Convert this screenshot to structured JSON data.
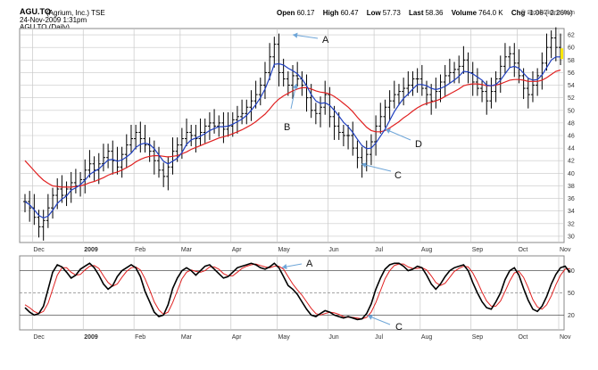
{
  "header": {
    "symbol": "AGU.TO",
    "company": "(Agrium, Inc.)",
    "exchange": "TSE",
    "datetime": "24-Nov-2009 1:31pm",
    "chart_name": "AGU.TO (Daily)",
    "copyright": "© StockCharts.com",
    "quote": {
      "open_label": "Open",
      "open": "60.17",
      "high_label": "High",
      "high": "60.47",
      "low_label": "Low",
      "low": "57.73",
      "last_label": "Last",
      "last": "58.36",
      "volume_label": "Volume",
      "volume": "764.0 K",
      "chg_label": "Chg",
      "chg": "-1.06 (-2.26%)"
    }
  },
  "annotations": {
    "price": [
      "A",
      "B",
      "C",
      "D"
    ],
    "oscillator": [
      "A",
      "C"
    ]
  },
  "colors": {
    "price_bars": "#000000",
    "ma_short": "#1f3fbf",
    "ma_long": "#e02020",
    "stoch_k": "#000000",
    "stoch_d": "#e02020",
    "grid": "#c8c8c8",
    "arrow": "#6fa6d8",
    "last_marker": "#ffe800"
  },
  "chart_data": [
    {
      "type": "ohlc",
      "x_ticks": [
        "Dec",
        "2009",
        "Feb",
        "Mar",
        "Apr",
        "May",
        "Jun",
        "Jul",
        "Aug",
        "Sep",
        "Oct",
        "Nov"
      ],
      "y_ticks": [
        30,
        32,
        34,
        36,
        38,
        40,
        42,
        44,
        46,
        48,
        50,
        52,
        54,
        56,
        58,
        60,
        62
      ],
      "ylim": [
        29,
        63
      ],
      "grid": true,
      "series": [
        {
          "name": "Price",
          "close": [
            35.5,
            34.5,
            33,
            31.5,
            32.5,
            34.5,
            36.5,
            37.5,
            36.5,
            37.5,
            38.5,
            38,
            39,
            40.5,
            41.5,
            40.5,
            41.5,
            42.5,
            43.5,
            42,
            41,
            43,
            44.5,
            45.5,
            46.5,
            45.5,
            44.5,
            43.5,
            42,
            40.5,
            39.5,
            41,
            43.5,
            44.5,
            45.5,
            46.5,
            46,
            45.5,
            46.5,
            47.5,
            48,
            47.5,
            48,
            47,
            47.5,
            48.5,
            49,
            49.5,
            50.5,
            51.5,
            52.5,
            54,
            56,
            58.5,
            60.5,
            56,
            55,
            54,
            55.5,
            55,
            54,
            52,
            50,
            49.5,
            50.5,
            52.5,
            49,
            47.5,
            46.5,
            46,
            46,
            44,
            42.5,
            41.5,
            43,
            45,
            47.5,
            49,
            50.5,
            51.5,
            52.5,
            53,
            53.5,
            54,
            55,
            55,
            53.5,
            52.5,
            51.5,
            53,
            54.5,
            55.5,
            56,
            56.5,
            57,
            58,
            56,
            54.5,
            53.5,
            53,
            51.5,
            53,
            55,
            57,
            58.5,
            59,
            57.5,
            55.5,
            53.5,
            52.5,
            54,
            55.5,
            57.5,
            60,
            61.5,
            60,
            58.4
          ]
        },
        {
          "name": "Short MA",
          "values": [
            35.5,
            35,
            34.2,
            33.3,
            32.9,
            33.2,
            34.1,
            35.2,
            35.9,
            36.4,
            37.3,
            37.7,
            38.2,
            38.9,
            39.8,
            40.3,
            40.7,
            41.4,
            42.1,
            42.2,
            41.9,
            42.1,
            42.6,
            43.2,
            44.1,
            44.6,
            44.8,
            44.6,
            43.9,
            42.9,
            41.9,
            41.5,
            41.9,
            42.4,
            43.3,
            44.6,
            45.3,
            45.6,
            45.9,
            46.3,
            46.8,
            47.1,
            47.4,
            47.4,
            47.5,
            47.8,
            48.2,
            48.6,
            49.2,
            50,
            50.9,
            52,
            53.4,
            55.2,
            57.3,
            57.4,
            57.2,
            56.7,
            56.3,
            55.8,
            55,
            53.9,
            52.5,
            51.5,
            51.1,
            51.2,
            50.8,
            50,
            49.1,
            48.1,
            47.4,
            46.5,
            45.4,
            44.4,
            43.9,
            44,
            44.8,
            45.9,
            47,
            48.4,
            49.8,
            50.9,
            51.9,
            52.6,
            53.4,
            54.1,
            54.1,
            53.9,
            53.5,
            53.3,
            53.5,
            53.8,
            54.3,
            54.8,
            55.4,
            56.2,
            56.1,
            55.8,
            55.3,
            54.8,
            54,
            53.9,
            54.1,
            54.8,
            55.8,
            56.8,
            57,
            56.7,
            55.9,
            55.1,
            54.8,
            54.9,
            55.6,
            56.8,
            58,
            58.5,
            58.5
          ]
        },
        {
          "name": "Long MA",
          "values": [
            42,
            41.2,
            40.4,
            39.6,
            38.9,
            38.4,
            38,
            37.9,
            37.8,
            37.8,
            37.8,
            37.9,
            38,
            38.2,
            38.5,
            38.7,
            39,
            39.3,
            39.7,
            40,
            40.2,
            40.5,
            40.9,
            41.3,
            41.8,
            42.2,
            42.5,
            42.7,
            42.8,
            42.8,
            42.7,
            42.6,
            42.7,
            42.8,
            43.1,
            43.4,
            43.8,
            44.1,
            44.4,
            44.7,
            45,
            45.3,
            45.6,
            45.8,
            46,
            46.3,
            46.6,
            46.9,
            47.3,
            47.7,
            48.2,
            48.8,
            49.4,
            50.2,
            51.1,
            51.8,
            52.3,
            52.7,
            53.1,
            53.4,
            53.6,
            53.6,
            53.4,
            53.1,
            52.9,
            52.8,
            52.6,
            52.2,
            51.7,
            51.1,
            50.5,
            49.8,
            48.9,
            48.1,
            47.3,
            46.8,
            46.6,
            46.6,
            46.8,
            47.2,
            47.7,
            48.2,
            48.8,
            49.3,
            49.9,
            50.4,
            50.8,
            51.1,
            51.3,
            51.5,
            51.8,
            52.2,
            52.6,
            53,
            53.4,
            53.9,
            54.1,
            54.2,
            54.2,
            54.1,
            53.9,
            53.9,
            54,
            54.2,
            54.5,
            54.8,
            54.9,
            54.9,
            54.8,
            54.6,
            54.6,
            54.6,
            54.8,
            55.2,
            55.7,
            56.2,
            56.4
          ]
        }
      ]
    },
    {
      "type": "line",
      "title": "",
      "y_ticks": [
        20,
        50,
        80
      ],
      "ylim": [
        0,
        100
      ],
      "reference_lines": [
        20,
        50,
        80
      ],
      "x_ticks": [
        "Dec",
        "2009",
        "Feb",
        "Mar",
        "Apr",
        "May",
        "Jun",
        "Jul",
        "Aug",
        "Sep",
        "Oct",
        "Nov"
      ],
      "series": [
        {
          "name": "%K",
          "values": [
            30,
            24,
            20,
            22,
            32,
            55,
            78,
            88,
            85,
            78,
            70,
            74,
            82,
            86,
            90,
            84,
            74,
            62,
            55,
            60,
            72,
            80,
            84,
            88,
            84,
            72,
            52,
            38,
            24,
            18,
            20,
            34,
            56,
            70,
            80,
            84,
            80,
            74,
            80,
            86,
            88,
            82,
            76,
            70,
            72,
            78,
            84,
            86,
            88,
            90,
            88,
            84,
            82,
            85,
            90,
            84,
            72,
            60,
            55,
            48,
            38,
            28,
            20,
            18,
            22,
            26,
            24,
            20,
            18,
            16,
            18,
            16,
            14,
            15,
            22,
            35,
            55,
            70,
            82,
            88,
            90,
            90,
            86,
            80,
            82,
            86,
            84,
            74,
            62,
            55,
            62,
            72,
            80,
            84,
            86,
            88,
            80,
            64,
            50,
            38,
            30,
            28,
            38,
            50,
            68,
            80,
            84,
            74,
            56,
            40,
            28,
            25,
            32,
            45,
            62,
            75,
            84,
            86,
            78
          ]
        },
        {
          "name": "%D",
          "values": [
            34,
            30,
            25,
            22,
            25,
            36,
            55,
            74,
            84,
            84,
            78,
            74,
            75,
            81,
            86,
            87,
            83,
            73,
            64,
            59,
            62,
            71,
            79,
            84,
            85,
            81,
            69,
            54,
            38,
            27,
            21,
            24,
            37,
            53,
            69,
            78,
            81,
            79,
            78,
            80,
            85,
            85,
            82,
            76,
            73,
            73,
            78,
            83,
            86,
            88,
            89,
            87,
            85,
            84,
            86,
            86,
            82,
            72,
            62,
            54,
            47,
            38,
            29,
            22,
            20,
            22,
            24,
            23,
            21,
            18,
            17,
            17,
            16,
            15,
            17,
            24,
            37,
            53,
            69,
            80,
            87,
            89,
            89,
            85,
            83,
            83,
            84,
            81,
            73,
            64,
            60,
            63,
            71,
            79,
            83,
            86,
            85,
            77,
            65,
            51,
            39,
            32,
            32,
            39,
            52,
            66,
            77,
            79,
            71,
            57,
            41,
            31,
            28,
            34,
            46,
            61,
            74,
            82,
            83
          ]
        }
      ]
    }
  ]
}
